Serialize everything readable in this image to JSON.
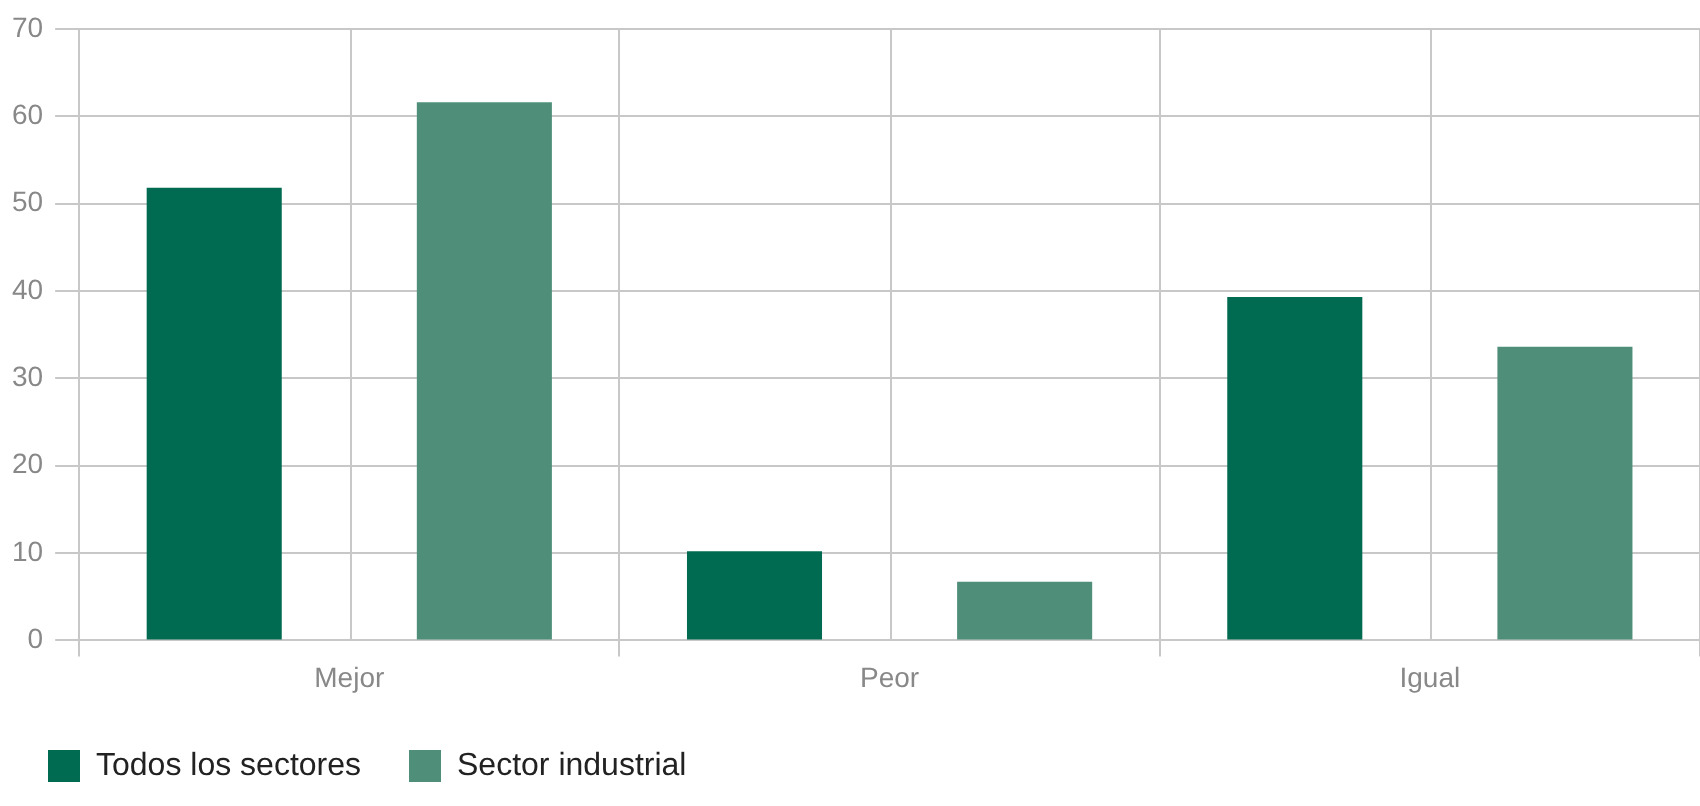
{
  "chart_data": {
    "type": "bar",
    "categories": [
      "Mejor",
      "Peor",
      "Igual"
    ],
    "series": [
      {
        "name": "Todos los sectores",
        "color": "#006b50",
        "values": [
          51.8,
          10.2,
          39.3
        ]
      },
      {
        "name": "Sector industrial",
        "color": "#4f8f7a",
        "values": [
          61.6,
          6.7,
          33.6
        ]
      }
    ],
    "ylim": [
      0,
      70
    ],
    "yticks": [
      0,
      10,
      20,
      30,
      40,
      50,
      60,
      70
    ],
    "grid": true,
    "legend": "bottom left"
  }
}
